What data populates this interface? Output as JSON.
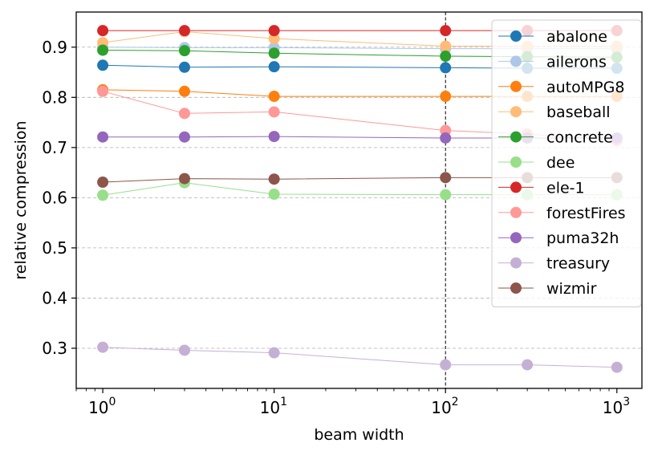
{
  "chart_data": {
    "type": "line",
    "xscale": "log",
    "x": [
      1,
      3,
      10,
      100,
      300,
      1000
    ],
    "xlim": [
      0.7,
      1400
    ],
    "ylim": [
      0.22,
      0.97
    ],
    "xlabel": "beam width",
    "ylabel": "relative compression",
    "yticks": [
      {
        "value": 0.3,
        "label": "0.3"
      },
      {
        "value": 0.4,
        "label": "0.4"
      },
      {
        "value": 0.5,
        "label": "0.5"
      },
      {
        "value": 0.6,
        "label": "0.6"
      },
      {
        "value": 0.7,
        "label": "0.7"
      },
      {
        "value": 0.8,
        "label": "0.8"
      },
      {
        "value": 0.9,
        "label": "0.9"
      }
    ],
    "xticks": [
      {
        "value": 1,
        "base": "10",
        "exp": "0"
      },
      {
        "value": 10,
        "base": "10",
        "exp": "1"
      },
      {
        "value": 100,
        "base": "10",
        "exp": "2"
      },
      {
        "value": 1000,
        "base": "10",
        "exp": "3"
      }
    ],
    "grid": "y-dashed",
    "vline": 100,
    "legend_position": "top-right",
    "series": [
      {
        "name": "abalone",
        "color": "#1f77b4",
        "values": [
          0.864,
          0.86,
          0.861,
          0.859,
          0.858,
          0.858
        ]
      },
      {
        "name": "ailerons",
        "color": "#aec7e8",
        "values": [
          0.9,
          0.899,
          0.899,
          0.897,
          0.897,
          0.897
        ]
      },
      {
        "name": "autoMPG8",
        "color": "#ff7f0e",
        "values": [
          0.815,
          0.812,
          0.802,
          0.802,
          0.802,
          0.802
        ]
      },
      {
        "name": "baseball",
        "color": "#ffbb78",
        "values": [
          0.909,
          0.931,
          0.917,
          0.902,
          0.902,
          0.902
        ]
      },
      {
        "name": "concrete",
        "color": "#2ca02c",
        "values": [
          0.894,
          0.893,
          0.888,
          0.882,
          0.881,
          0.88
        ]
      },
      {
        "name": "dee",
        "color": "#98df8a",
        "values": [
          0.605,
          0.63,
          0.607,
          0.606,
          0.606,
          0.606
        ]
      },
      {
        "name": "ele-1",
        "color": "#d62728",
        "values": [
          0.933,
          0.933,
          0.933,
          0.933,
          0.933,
          0.933
        ]
      },
      {
        "name": "forestFires",
        "color": "#ff9896",
        "values": [
          0.812,
          0.768,
          0.771,
          0.734,
          0.727,
          0.714
        ]
      },
      {
        "name": "puma32h",
        "color": "#9467bd",
        "values": [
          0.721,
          0.721,
          0.722,
          0.719,
          0.719,
          0.719
        ]
      },
      {
        "name": "treasury",
        "color": "#c5b0d5",
        "values": [
          0.302,
          0.296,
          0.291,
          0.267,
          0.267,
          0.262
        ]
      },
      {
        "name": "wizmir",
        "color": "#8c564b",
        "values": [
          0.631,
          0.638,
          0.637,
          0.64,
          0.64,
          0.64
        ]
      }
    ]
  }
}
